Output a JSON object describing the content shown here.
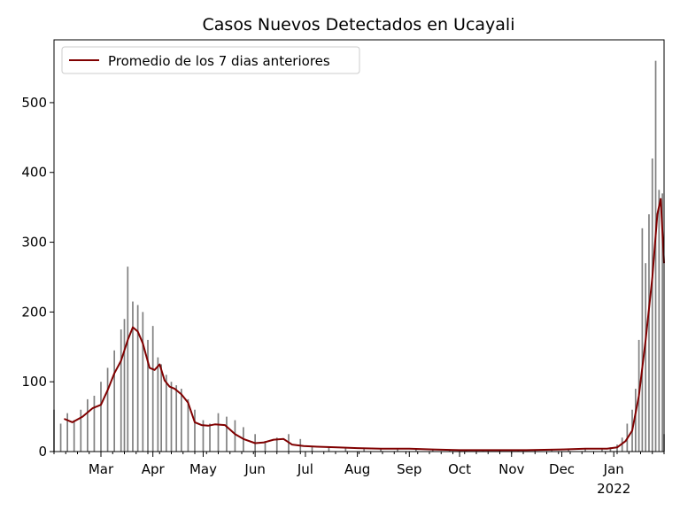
{
  "chart_data": {
    "type": "bar",
    "title": "Casos Nuevos Detectados en Ucayali",
    "xlabel": "",
    "ylabel": "",
    "ylim": [
      0,
      590
    ],
    "xlim_day_range": [
      "2021-02-01",
      "2022-01-31"
    ],
    "grid": false,
    "legend_position": "top-left",
    "x_ticks": [
      {
        "date": "2021-03-01",
        "label": "Mar"
      },
      {
        "date": "2021-04-01",
        "label": "Apr"
      },
      {
        "date": "2021-05-01",
        "label": "May"
      },
      {
        "date": "2021-06-01",
        "label": "Jun"
      },
      {
        "date": "2021-07-01",
        "label": "Jul"
      },
      {
        "date": "2021-08-01",
        "label": "Aug"
      },
      {
        "date": "2021-09-01",
        "label": "Sep"
      },
      {
        "date": "2021-10-01",
        "label": "Oct"
      },
      {
        "date": "2021-11-01",
        "label": "Nov"
      },
      {
        "date": "2021-12-01",
        "label": "Dec"
      },
      {
        "date": "2022-01-01",
        "label": "Jan",
        "sublabel": "2022"
      }
    ],
    "y_ticks": [
      0,
      100,
      200,
      300,
      400,
      500
    ],
    "series": [
      {
        "name": "",
        "kind": "bar",
        "color": "#808080",
        "dates": [
          "2021-02-01",
          "2021-02-05",
          "2021-02-09",
          "2021-02-13",
          "2021-02-17",
          "2021-02-21",
          "2021-02-25",
          "2021-03-01",
          "2021-03-05",
          "2021-03-09",
          "2021-03-13",
          "2021-03-15",
          "2021-03-17",
          "2021-03-20",
          "2021-03-23",
          "2021-03-26",
          "2021-03-29",
          "2021-04-01",
          "2021-04-04",
          "2021-04-06",
          "2021-04-09",
          "2021-04-12",
          "2021-04-15",
          "2021-04-18",
          "2021-04-22",
          "2021-04-26",
          "2021-05-01",
          "2021-05-05",
          "2021-05-10",
          "2021-05-15",
          "2021-05-20",
          "2021-05-25",
          "2021-06-01",
          "2021-06-07",
          "2021-06-14",
          "2021-06-21",
          "2021-06-28",
          "2021-07-05",
          "2021-07-15",
          "2021-07-25",
          "2021-08-05",
          "2021-08-15",
          "2021-08-25",
          "2021-09-05",
          "2021-09-15",
          "2021-09-25",
          "2021-10-05",
          "2021-10-15",
          "2021-10-25",
          "2021-11-05",
          "2021-11-15",
          "2021-11-25",
          "2021-12-05",
          "2021-12-15",
          "2021-12-25",
          "2021-12-30",
          "2022-01-03",
          "2022-01-06",
          "2022-01-09",
          "2022-01-12",
          "2022-01-14",
          "2022-01-16",
          "2022-01-18",
          "2022-01-20",
          "2022-01-22",
          "2022-01-24",
          "2022-01-26",
          "2022-01-28",
          "2022-01-30",
          "2022-01-31"
        ],
        "values": [
          60,
          40,
          55,
          45,
          60,
          75,
          80,
          100,
          120,
          145,
          175,
          190,
          265,
          215,
          210,
          200,
          160,
          180,
          135,
          125,
          110,
          100,
          95,
          90,
          75,
          60,
          45,
          40,
          55,
          50,
          45,
          35,
          25,
          15,
          20,
          25,
          18,
          8,
          6,
          5,
          4,
          4,
          4,
          4,
          3,
          3,
          3,
          3,
          2,
          2,
          2,
          2,
          3,
          4,
          5,
          6,
          10,
          20,
          40,
          60,
          90,
          160,
          320,
          270,
          340,
          420,
          560,
          375,
          370,
          25
        ]
      },
      {
        "name": "Promedio de los 7 dias anteriores",
        "kind": "line",
        "color": "#800000",
        "dates": [
          "2021-02-07",
          "2021-02-12",
          "2021-02-18",
          "2021-02-24",
          "2021-03-01",
          "2021-03-05",
          "2021-03-09",
          "2021-03-13",
          "2021-03-17",
          "2021-03-20",
          "2021-03-23",
          "2021-03-26",
          "2021-03-30",
          "2021-04-02",
          "2021-04-05",
          "2021-04-08",
          "2021-04-11",
          "2021-04-14",
          "2021-04-18",
          "2021-04-22",
          "2021-04-26",
          "2021-04-30",
          "2021-05-04",
          "2021-05-08",
          "2021-05-14",
          "2021-05-20",
          "2021-05-25",
          "2021-06-01",
          "2021-06-06",
          "2021-06-12",
          "2021-06-18",
          "2021-06-23",
          "2021-06-30",
          "2021-07-08",
          "2021-07-20",
          "2021-08-01",
          "2021-08-15",
          "2021-09-01",
          "2021-09-15",
          "2021-10-01",
          "2021-10-20",
          "2021-11-10",
          "2021-12-01",
          "2021-12-15",
          "2021-12-28",
          "2022-01-03",
          "2022-01-08",
          "2022-01-12",
          "2022-01-16",
          "2022-01-20",
          "2022-01-24",
          "2022-01-27",
          "2022-01-29",
          "2022-01-31"
        ],
        "values": [
          47,
          42,
          50,
          62,
          67,
          88,
          112,
          130,
          160,
          178,
          172,
          155,
          120,
          117,
          125,
          102,
          93,
          90,
          82,
          70,
          42,
          38,
          37,
          39,
          38,
          25,
          18,
          12,
          13,
          17,
          18,
          10,
          8,
          7,
          6,
          5,
          4,
          4,
          3,
          2,
          2,
          2,
          3,
          4,
          4,
          6,
          15,
          30,
          80,
          160,
          250,
          340,
          362,
          270
        ]
      }
    ]
  }
}
